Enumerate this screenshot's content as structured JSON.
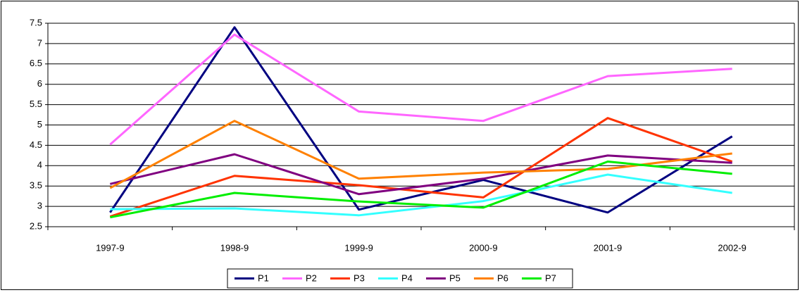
{
  "chart_data": {
    "type": "line",
    "categories": [
      "1997-9",
      "1998-9",
      "1999-9",
      "2000-9",
      "2001-9",
      "2002-9"
    ],
    "series": [
      {
        "name": "P1",
        "color": "#000080",
        "values": [
          2.85,
          7.4,
          2.92,
          3.65,
          2.85,
          4.72
        ]
      },
      {
        "name": "P2",
        "color": "#ff66ff",
        "values": [
          4.52,
          7.22,
          5.33,
          5.1,
          6.2,
          6.38
        ]
      },
      {
        "name": "P3",
        "color": "#ff3300",
        "values": [
          2.75,
          3.75,
          3.52,
          3.22,
          5.17,
          4.1
        ]
      },
      {
        "name": "P4",
        "color": "#33ffff",
        "values": [
          2.93,
          2.95,
          2.78,
          3.13,
          3.78,
          3.33
        ]
      },
      {
        "name": "P5",
        "color": "#800080",
        "values": [
          3.55,
          4.28,
          3.3,
          3.68,
          4.25,
          4.07
        ]
      },
      {
        "name": "P6",
        "color": "#ff8000",
        "values": [
          3.45,
          5.1,
          3.68,
          3.83,
          3.92,
          4.3
        ]
      },
      {
        "name": "P7",
        "color": "#00ee00",
        "values": [
          2.73,
          3.33,
          3.12,
          2.97,
          4.1,
          3.8
        ]
      }
    ],
    "ylim": [
      2.5,
      7.5
    ],
    "yticks": [
      2.5,
      3,
      3.5,
      4,
      4.5,
      5,
      5.5,
      6,
      6.5,
      7,
      7.5
    ],
    "grid": true,
    "legend": "bottom"
  }
}
